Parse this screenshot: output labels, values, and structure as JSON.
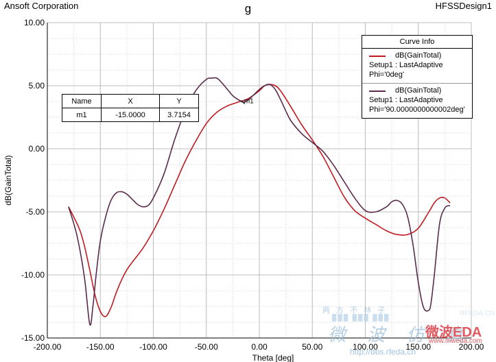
{
  "header": {
    "company": "Ansoft Corporation",
    "title": "g",
    "design": "HFSSDesign1"
  },
  "marker_table": {
    "headers": [
      "Name",
      "X",
      "Y"
    ],
    "row": {
      "name": "m1",
      "x": "-15.0000",
      "y": "3.7154"
    }
  },
  "legend": {
    "title": "Curve Info",
    "entries": [
      {
        "label": "dB(GainTotal)",
        "setup": "Setup1 : LastAdaptive",
        "param": "Phi='0deg'",
        "color": "#c0191e"
      },
      {
        "label": "dB(GainTotal)",
        "setup": "Setup1 : LastAdaptive",
        "param": "Phi='90.0000000000002deg'",
        "color": "#5a2a4a"
      }
    ]
  },
  "watermark": {
    "line1": "两 方 不 林 子",
    "line2": "███ ███ ███",
    "line3": "微 波 仿 真",
    "line4": "http://bbs.rfeda.cn",
    "brand": "微波EDA",
    "brand_url": "www.mweda.com",
    "brand2": "RFEDA.CN"
  },
  "chart_data": {
    "type": "line",
    "xlabel": "Theta [deg]",
    "ylabel": "dB(GainTotal)",
    "xlim": [
      -200,
      200
    ],
    "ylim": [
      -15,
      10
    ],
    "x_ticks": [
      -200,
      -150,
      -100,
      -50,
      0,
      50,
      100,
      150,
      200
    ],
    "x_tick_labels": [
      "-200.00",
      "-150.00",
      "-100.00",
      "-50.00",
      "0.00",
      "50.00",
      "100.00",
      "150.00",
      "200.00"
    ],
    "y_ticks": [
      10,
      5,
      0,
      -5,
      -10,
      -15
    ],
    "y_tick_labels": [
      "10.00",
      "5.00",
      "0.00",
      "-5.00",
      "-10.00",
      "-15.00"
    ],
    "grid": true,
    "legend_position": "top-right",
    "series": [
      {
        "name": "dB(GainTotal) Setup1 : LastAdaptive Phi='0deg'",
        "color": "#c0191e",
        "x": [
          -180,
          -170,
          -165,
          -160,
          -155,
          -150,
          -145,
          -140,
          -135,
          -130,
          -125,
          -120,
          -110,
          -100,
          -90,
          -80,
          -70,
          -60,
          -50,
          -40,
          -30,
          -20,
          -10,
          0,
          5,
          10,
          15,
          20,
          30,
          40,
          50,
          60,
          70,
          80,
          90,
          100,
          110,
          120,
          130,
          140,
          150,
          160,
          165,
          170,
          175,
          180
        ],
        "y": [
          -4.6,
          -6.3,
          -7.7,
          -9.6,
          -11.6,
          -12.9,
          -13.3,
          -12.6,
          -11.4,
          -10.4,
          -9.6,
          -9.0,
          -7.9,
          -6.5,
          -4.8,
          -2.9,
          -1.0,
          0.6,
          2.0,
          2.9,
          3.4,
          3.7,
          4.0,
          4.6,
          5.0,
          5.1,
          5.0,
          4.6,
          3.3,
          1.9,
          0.7,
          -0.6,
          -2.2,
          -3.8,
          -4.9,
          -5.5,
          -6.0,
          -6.5,
          -6.8,
          -6.8,
          -6.3,
          -5.0,
          -4.3,
          -3.9,
          -3.9,
          -4.3
        ]
      },
      {
        "name": "dB(GainTotal) Setup1 : LastAdaptive Phi='90.0000000000002deg'",
        "color": "#5a2a4a",
        "x": [
          -180,
          -172,
          -165,
          -160,
          -157,
          -154,
          -150,
          -145,
          -140,
          -135,
          -130,
          -125,
          -120,
          -115,
          -110,
          -105,
          -100,
          -90,
          -80,
          -70,
          -60,
          -50,
          -45,
          -40,
          -35,
          -30,
          -25,
          -20,
          -15,
          -10,
          -5,
          0,
          5,
          10,
          15,
          20,
          25,
          30,
          40,
          50,
          60,
          70,
          80,
          90,
          100,
          110,
          120,
          125,
          130,
          135,
          140,
          145,
          150,
          155,
          160,
          162,
          165,
          170,
          175,
          180
        ],
        "y": [
          -4.6,
          -6.9,
          -10.2,
          -13.9,
          -12.5,
          -10.0,
          -7.3,
          -5.4,
          -4.1,
          -3.5,
          -3.4,
          -3.6,
          -4.0,
          -4.4,
          -4.6,
          -4.5,
          -3.9,
          -2.0,
          0.7,
          3.0,
          4.6,
          5.5,
          5.6,
          5.6,
          5.2,
          4.7,
          4.2,
          3.9,
          3.7,
          3.9,
          4.3,
          4.7,
          5.0,
          5.1,
          4.7,
          3.9,
          3.0,
          2.2,
          1.2,
          0.5,
          -0.2,
          -1.3,
          -2.6,
          -3.9,
          -4.9,
          -5.0,
          -4.6,
          -4.2,
          -4.1,
          -4.4,
          -5.4,
          -7.6,
          -10.6,
          -12.6,
          -12.8,
          -12.2,
          -10.1,
          -6.0,
          -4.7,
          -4.5
        ]
      }
    ],
    "markers": [
      {
        "name": "m1",
        "x": -15,
        "y": 3.7154
      }
    ]
  }
}
